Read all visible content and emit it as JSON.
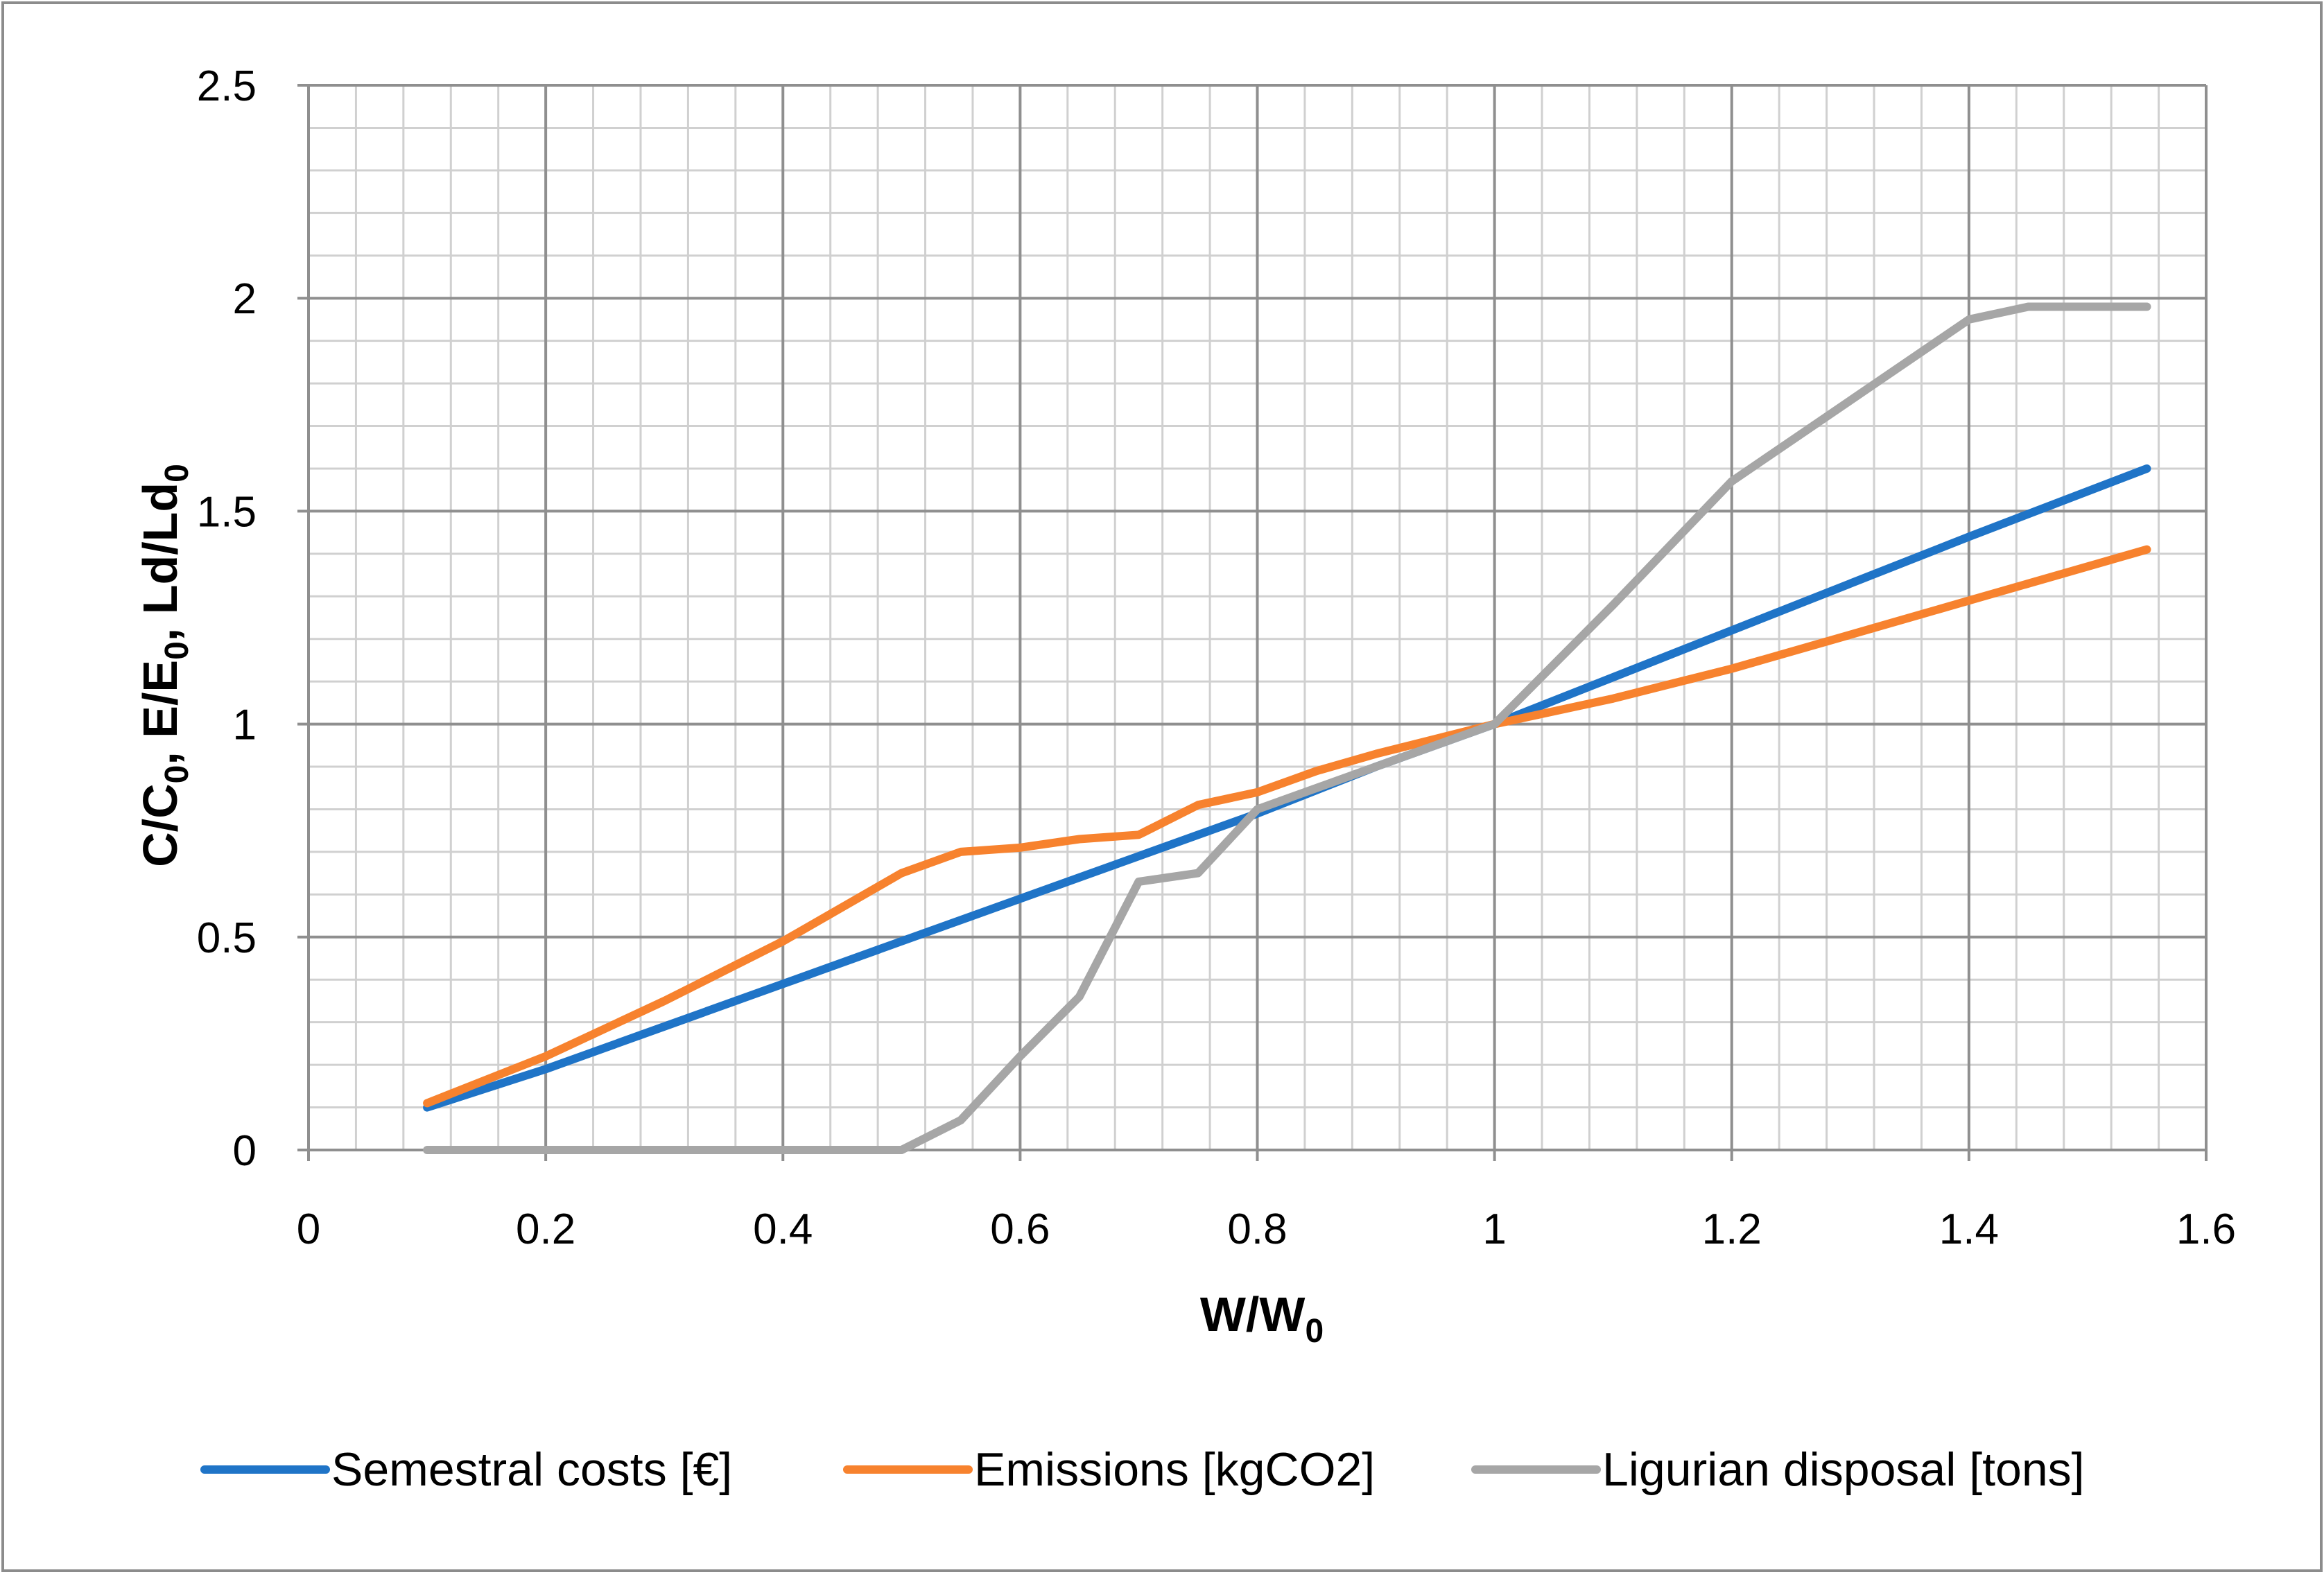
{
  "chart_data": {
    "type": "line",
    "xlabel": {
      "main": "W/W",
      "sub": "0"
    },
    "ylabel": [
      {
        "main": "C/C",
        "sub": "0"
      },
      {
        "main": ", E/E",
        "sub": "0"
      },
      {
        "main": ", Ld/Ld",
        "sub": "0"
      }
    ],
    "xlim": [
      0,
      1.6
    ],
    "ylim": [
      0,
      2.5
    ],
    "xticks": [
      0,
      0.2,
      0.4,
      0.6,
      0.8,
      1,
      1.2,
      1.4,
      1.6
    ],
    "xtick_labels": [
      "0",
      "0.2",
      "0.4",
      "0.6",
      "0.8",
      "1",
      "1.2",
      "1.4",
      "1.6"
    ],
    "yticks": [
      0,
      0.5,
      1,
      1.5,
      2,
      2.5
    ],
    "ytick_labels": [
      "0",
      "0.5",
      "1",
      "1.5",
      "2",
      "2.5"
    ],
    "minor_x_step": 0.04,
    "minor_y_step": 0.1,
    "grid": true,
    "legend_position": "bottom",
    "series": [
      {
        "name": "Semestral costs [€]",
        "color": "#1f74c7",
        "x": [
          0.1,
          0.2,
          0.3,
          0.4,
          0.5,
          0.6,
          0.7,
          0.8,
          0.9,
          1.0,
          1.1,
          1.2,
          1.3,
          1.4,
          1.55
        ],
        "y": [
          0.1,
          0.19,
          0.29,
          0.39,
          0.49,
          0.59,
          0.69,
          0.79,
          0.9,
          1.0,
          1.11,
          1.22,
          1.33,
          1.44,
          1.6
        ]
      },
      {
        "name": "Emissions [kgCO2]",
        "color": "#f7822e",
        "x": [
          0.1,
          0.2,
          0.3,
          0.4,
          0.5,
          0.55,
          0.6,
          0.65,
          0.7,
          0.75,
          0.8,
          0.85,
          0.9,
          1.0,
          1.1,
          1.2,
          1.3,
          1.4,
          1.55
        ],
        "y": [
          0.11,
          0.22,
          0.35,
          0.49,
          0.65,
          0.7,
          0.71,
          0.73,
          0.74,
          0.81,
          0.84,
          0.89,
          0.93,
          1.0,
          1.06,
          1.13,
          1.21,
          1.29,
          1.41
        ]
      },
      {
        "name": "Ligurian disposal [tons]",
        "color": "#a6a6a6",
        "x": [
          0.1,
          0.2,
          0.3,
          0.4,
          0.5,
          0.55,
          0.6,
          0.65,
          0.7,
          0.75,
          0.8,
          0.9,
          1.0,
          1.1,
          1.2,
          1.3,
          1.4,
          1.45,
          1.55
        ],
        "y": [
          0,
          0,
          0,
          0,
          0,
          0.07,
          0.22,
          0.36,
          0.63,
          0.65,
          0.8,
          0.9,
          1.0,
          1.28,
          1.57,
          1.76,
          1.95,
          1.98,
          1.98
        ]
      }
    ]
  }
}
